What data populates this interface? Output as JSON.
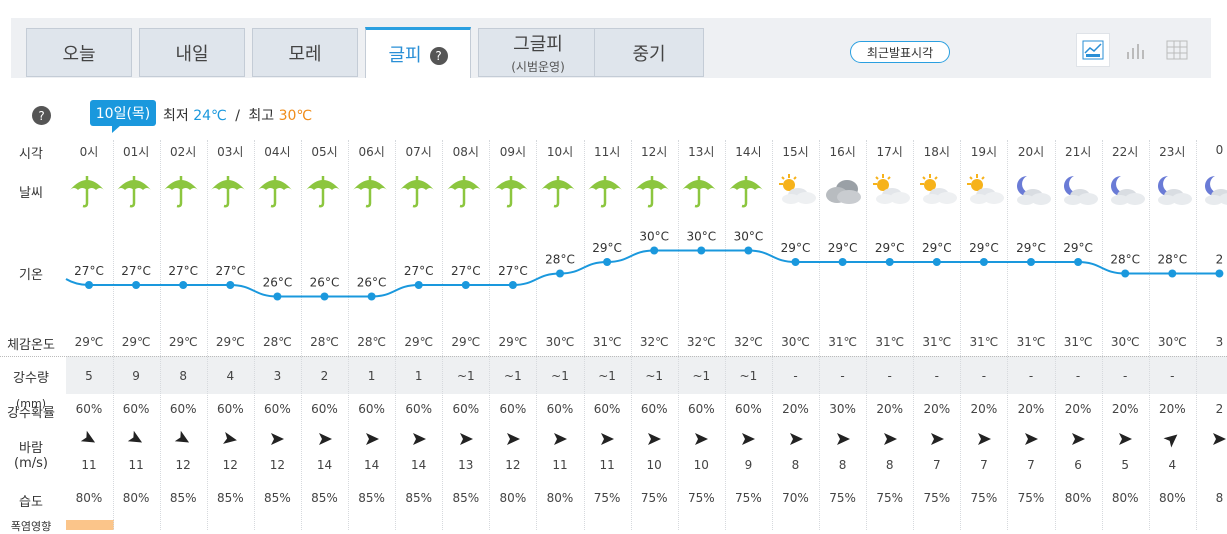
{
  "tabs": [
    {
      "label": "오늘",
      "sub": ""
    },
    {
      "label": "내일",
      "sub": ""
    },
    {
      "label": "모레",
      "sub": ""
    },
    {
      "label": "글피",
      "sub": "",
      "active": true
    },
    {
      "label": "그글피",
      "sub": "(시범운영)"
    },
    {
      "label": "중기",
      "sub": ""
    }
  ],
  "tab_help": "?",
  "latest_button": "최근발표시각",
  "view_icons": [
    "line-chart-icon",
    "bar-chart-icon",
    "table-icon"
  ],
  "help": "?",
  "date_badge": "10일(목)",
  "minmax": {
    "min_label": "최저",
    "min": "24℃",
    "sep": "/",
    "max_label": "최고",
    "max": "30℃"
  },
  "row_labels": {
    "time": "시각",
    "weather": "날씨",
    "temp": "기온",
    "feels": "체감온도",
    "rain": "강수량",
    "prob": "강수확률",
    "wind": "바람",
    "wind_unit": "(m/s)",
    "humidity": "습도",
    "heat": "폭염영향"
  },
  "rain_label_overlay": "(mm)",
  "hours": [
    "0시",
    "01시",
    "02시",
    "03시",
    "04시",
    "05시",
    "06시",
    "07시",
    "08시",
    "09시",
    "10시",
    "11시",
    "12시",
    "13시",
    "14시",
    "15시",
    "16시",
    "17시",
    "18시",
    "19시",
    "20시",
    "21시",
    "22시",
    "23시",
    "0"
  ],
  "weather": [
    "umbrella",
    "umbrella",
    "umbrella",
    "umbrella",
    "umbrella",
    "umbrella",
    "umbrella",
    "umbrella",
    "umbrella",
    "umbrella",
    "umbrella",
    "umbrella",
    "umbrella",
    "umbrella",
    "umbrella",
    "sun-cloud",
    "cloud",
    "sun-cloud",
    "sun-cloud",
    "sun-cloud",
    "moon-cloud",
    "moon-cloud",
    "moon-cloud",
    "moon-cloud",
    "moon-cloud"
  ],
  "temps": [
    27,
    27,
    27,
    27,
    26,
    26,
    26,
    27,
    27,
    27,
    28,
    29,
    30,
    30,
    30,
    29,
    29,
    29,
    29,
    29,
    29,
    29,
    28,
    28,
    28
  ],
  "temp_labels": [
    "27°C",
    "27°C",
    "27°C",
    "27°C",
    "26°C",
    "26°C",
    "26°C",
    "27°C",
    "27°C",
    "27°C",
    "28°C",
    "29°C",
    "30°C",
    "30°C",
    "30°C",
    "29°C",
    "29°C",
    "29°C",
    "29°C",
    "29°C",
    "29°C",
    "29°C",
    "28°C",
    "28°C",
    "2"
  ],
  "feels": [
    "29℃",
    "29℃",
    "29℃",
    "29℃",
    "28℃",
    "28℃",
    "28℃",
    "29℃",
    "29℃",
    "29℃",
    "30℃",
    "31℃",
    "32℃",
    "32℃",
    "32℃",
    "30℃",
    "31℃",
    "31℃",
    "31℃",
    "31℃",
    "31℃",
    "31℃",
    "30℃",
    "30℃",
    "3"
  ],
  "rain": [
    "5",
    "9",
    "8",
    "4",
    "3",
    "2",
    "1",
    "1",
    "~1",
    "~1",
    "~1",
    "~1",
    "~1",
    "~1",
    "~1",
    "-",
    "-",
    "-",
    "-",
    "-",
    "-",
    "-",
    "-",
    "-",
    ""
  ],
  "prob": [
    "60%",
    "60%",
    "60%",
    "60%",
    "60%",
    "60%",
    "60%",
    "60%",
    "60%",
    "60%",
    "60%",
    "60%",
    "60%",
    "60%",
    "60%",
    "20%",
    "30%",
    "20%",
    "20%",
    "20%",
    "20%",
    "20%",
    "20%",
    "20%",
    "2"
  ],
  "wind_speed": [
    "11",
    "11",
    "12",
    "12",
    "12",
    "14",
    "14",
    "14",
    "13",
    "12",
    "11",
    "11",
    "10",
    "10",
    "9",
    "8",
    "8",
    "8",
    "7",
    "7",
    "7",
    "6",
    "5",
    "4",
    ""
  ],
  "wind_dir_deg": [
    30,
    30,
    30,
    10,
    0,
    0,
    0,
    0,
    0,
    0,
    0,
    0,
    0,
    0,
    0,
    0,
    0,
    0,
    0,
    0,
    0,
    0,
    0,
    -40,
    0
  ],
  "humidity": [
    "80%",
    "80%",
    "85%",
    "85%",
    "85%",
    "85%",
    "85%",
    "85%",
    "85%",
    "80%",
    "80%",
    "75%",
    "75%",
    "75%",
    "75%",
    "70%",
    "75%",
    "75%",
    "75%",
    "75%",
    "75%",
    "80%",
    "80%",
    "80%",
    "8"
  ],
  "colors": {
    "accent": "#1a98dd",
    "line": "#1a98dd",
    "max": "#f08c1a",
    "umbrella": "#8cc63f"
  }
}
